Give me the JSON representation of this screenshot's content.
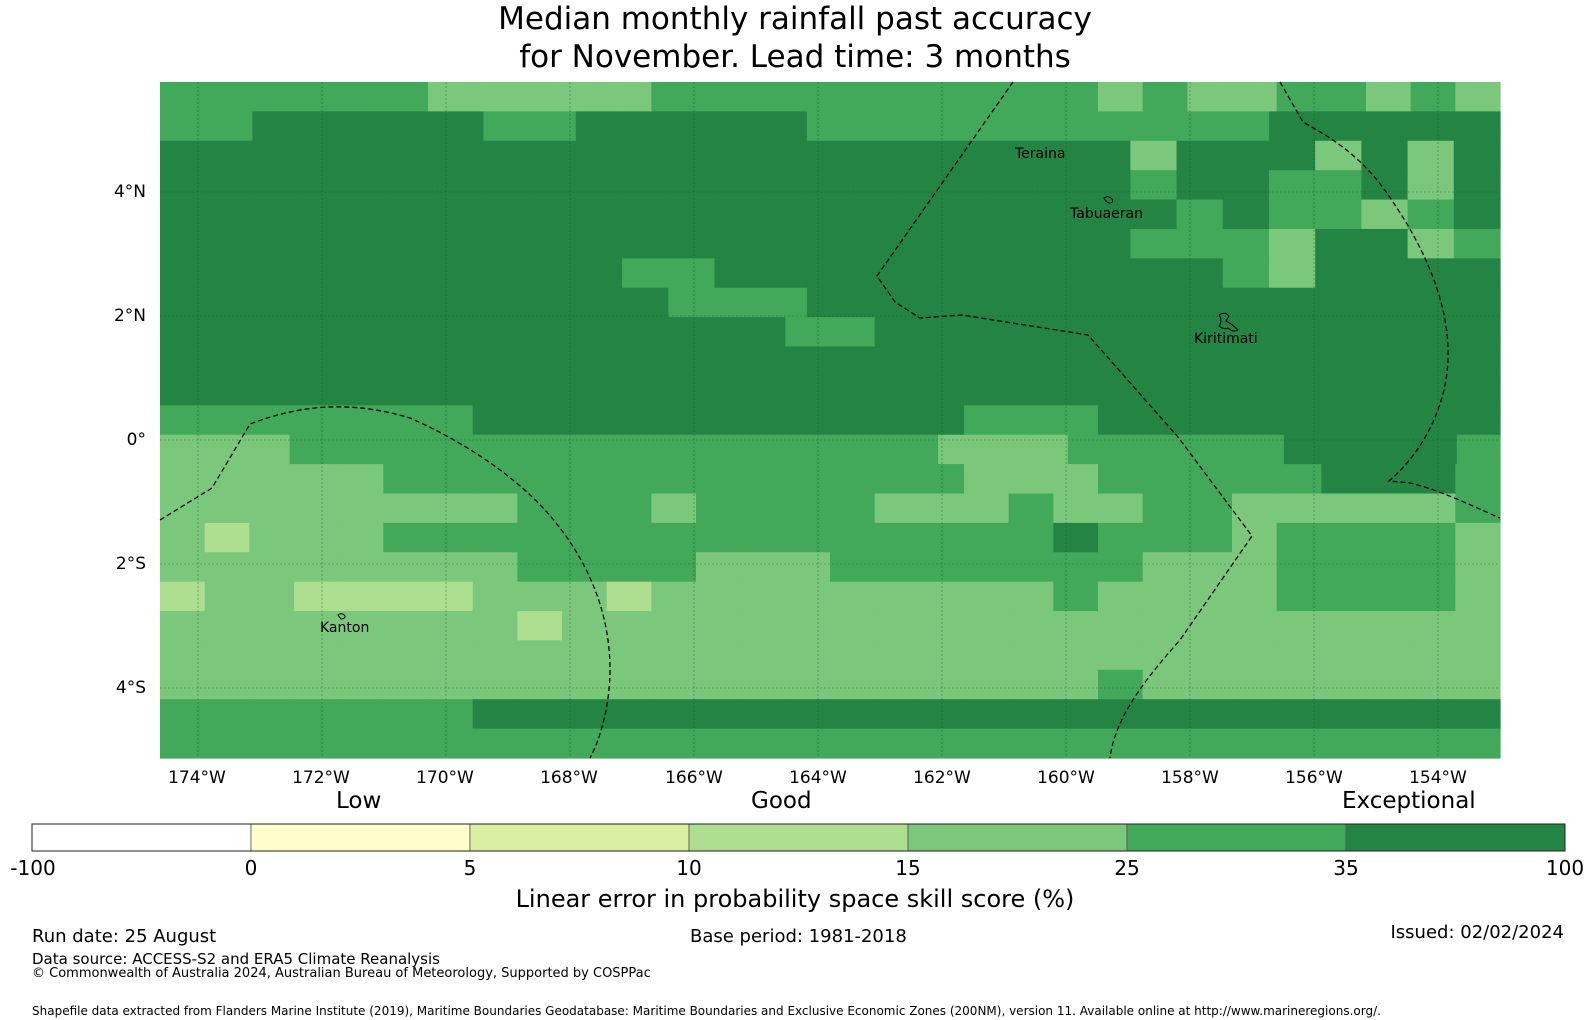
{
  "title": {
    "line1": "Median monthly rainfall past accuracy",
    "line2": "for November. Lead time: 3 months"
  },
  "map": {
    "lat_labels": [
      "4°N",
      "2°N",
      "0°",
      "2°S",
      "4°S"
    ],
    "lon_labels": [
      "174°W",
      "172°W",
      "170°W",
      "168°W",
      "166°W",
      "164°W",
      "162°W",
      "160°W",
      "158°W",
      "156°W",
      "154°W"
    ],
    "places": [
      "Teraina",
      "Tabuaeran",
      "Kiritimati",
      "Kanton"
    ],
    "colors": {
      "c0": "#7bc77b",
      "c1": "#42a85a",
      "c2": "#238443",
      "c3": "#addd8e",
      "c4": "#d9f0a3"
    },
    "legend": [
      "1_1111000001111111111010011010",
      "11222221122222111111111122222",
      "22222222222222222222202220202",
      "22222222222222222222212211202",
      "22222222222222222222221211012",
      "22222222222222222222211102201",
      "22222222221122222222222102222",
      "22222222222111222222222222222",
      "222222222222221122222222222222",
      "222222222222222222222222222222",
      "222222222222222222222222222222",
      "111111122222222222111222222222",
      "0001111111111111110001111122221",
      "000001111111111111000111112221",
      "000000001110111100010011000001",
      "030001111111111111112111011110",
      "000000001111000111111100011110",
      "300333300030000000001000011110",
      "000000003000000000000000000000",
      "000000000000000000000000000000",
      "000000000000000000000100000000",
      "111111122222222222222222222222",
      "111111111111111111111111111111"
    ]
  },
  "colorbar": {
    "categories": [
      "Low",
      "Good",
      "Exceptional"
    ],
    "ticks": [
      "-100",
      "0",
      "5",
      "10",
      "15",
      "25",
      "35",
      "100"
    ],
    "colors": [
      "#ffffff",
      "#ffffcc",
      "#d9f0a3",
      "#addd8e",
      "#7bc77b",
      "#42a85a",
      "#238443"
    ],
    "label": "Linear error in probability space skill score (%)"
  },
  "footer": {
    "run_date": "Run date: 25 August",
    "base_period": "Base period: 1981-2018",
    "issued": "Issued: 02/02/2024",
    "data_source": "Data source: ACCESS-S2 and ERA5 Climate Reanalysis",
    "copyright": "© Commonwealth of Australia 2024, Australian Bureau of Meteorology, Supported by COSPPac",
    "shapefile": "Shapefile data extracted from Flanders Marine Institute (2019), Maritime Boundaries Geodatabase: Maritime Boundaries and Exclusive Economic Zones (200NM), version 11. Available online at http://www.marineregions.org/."
  }
}
